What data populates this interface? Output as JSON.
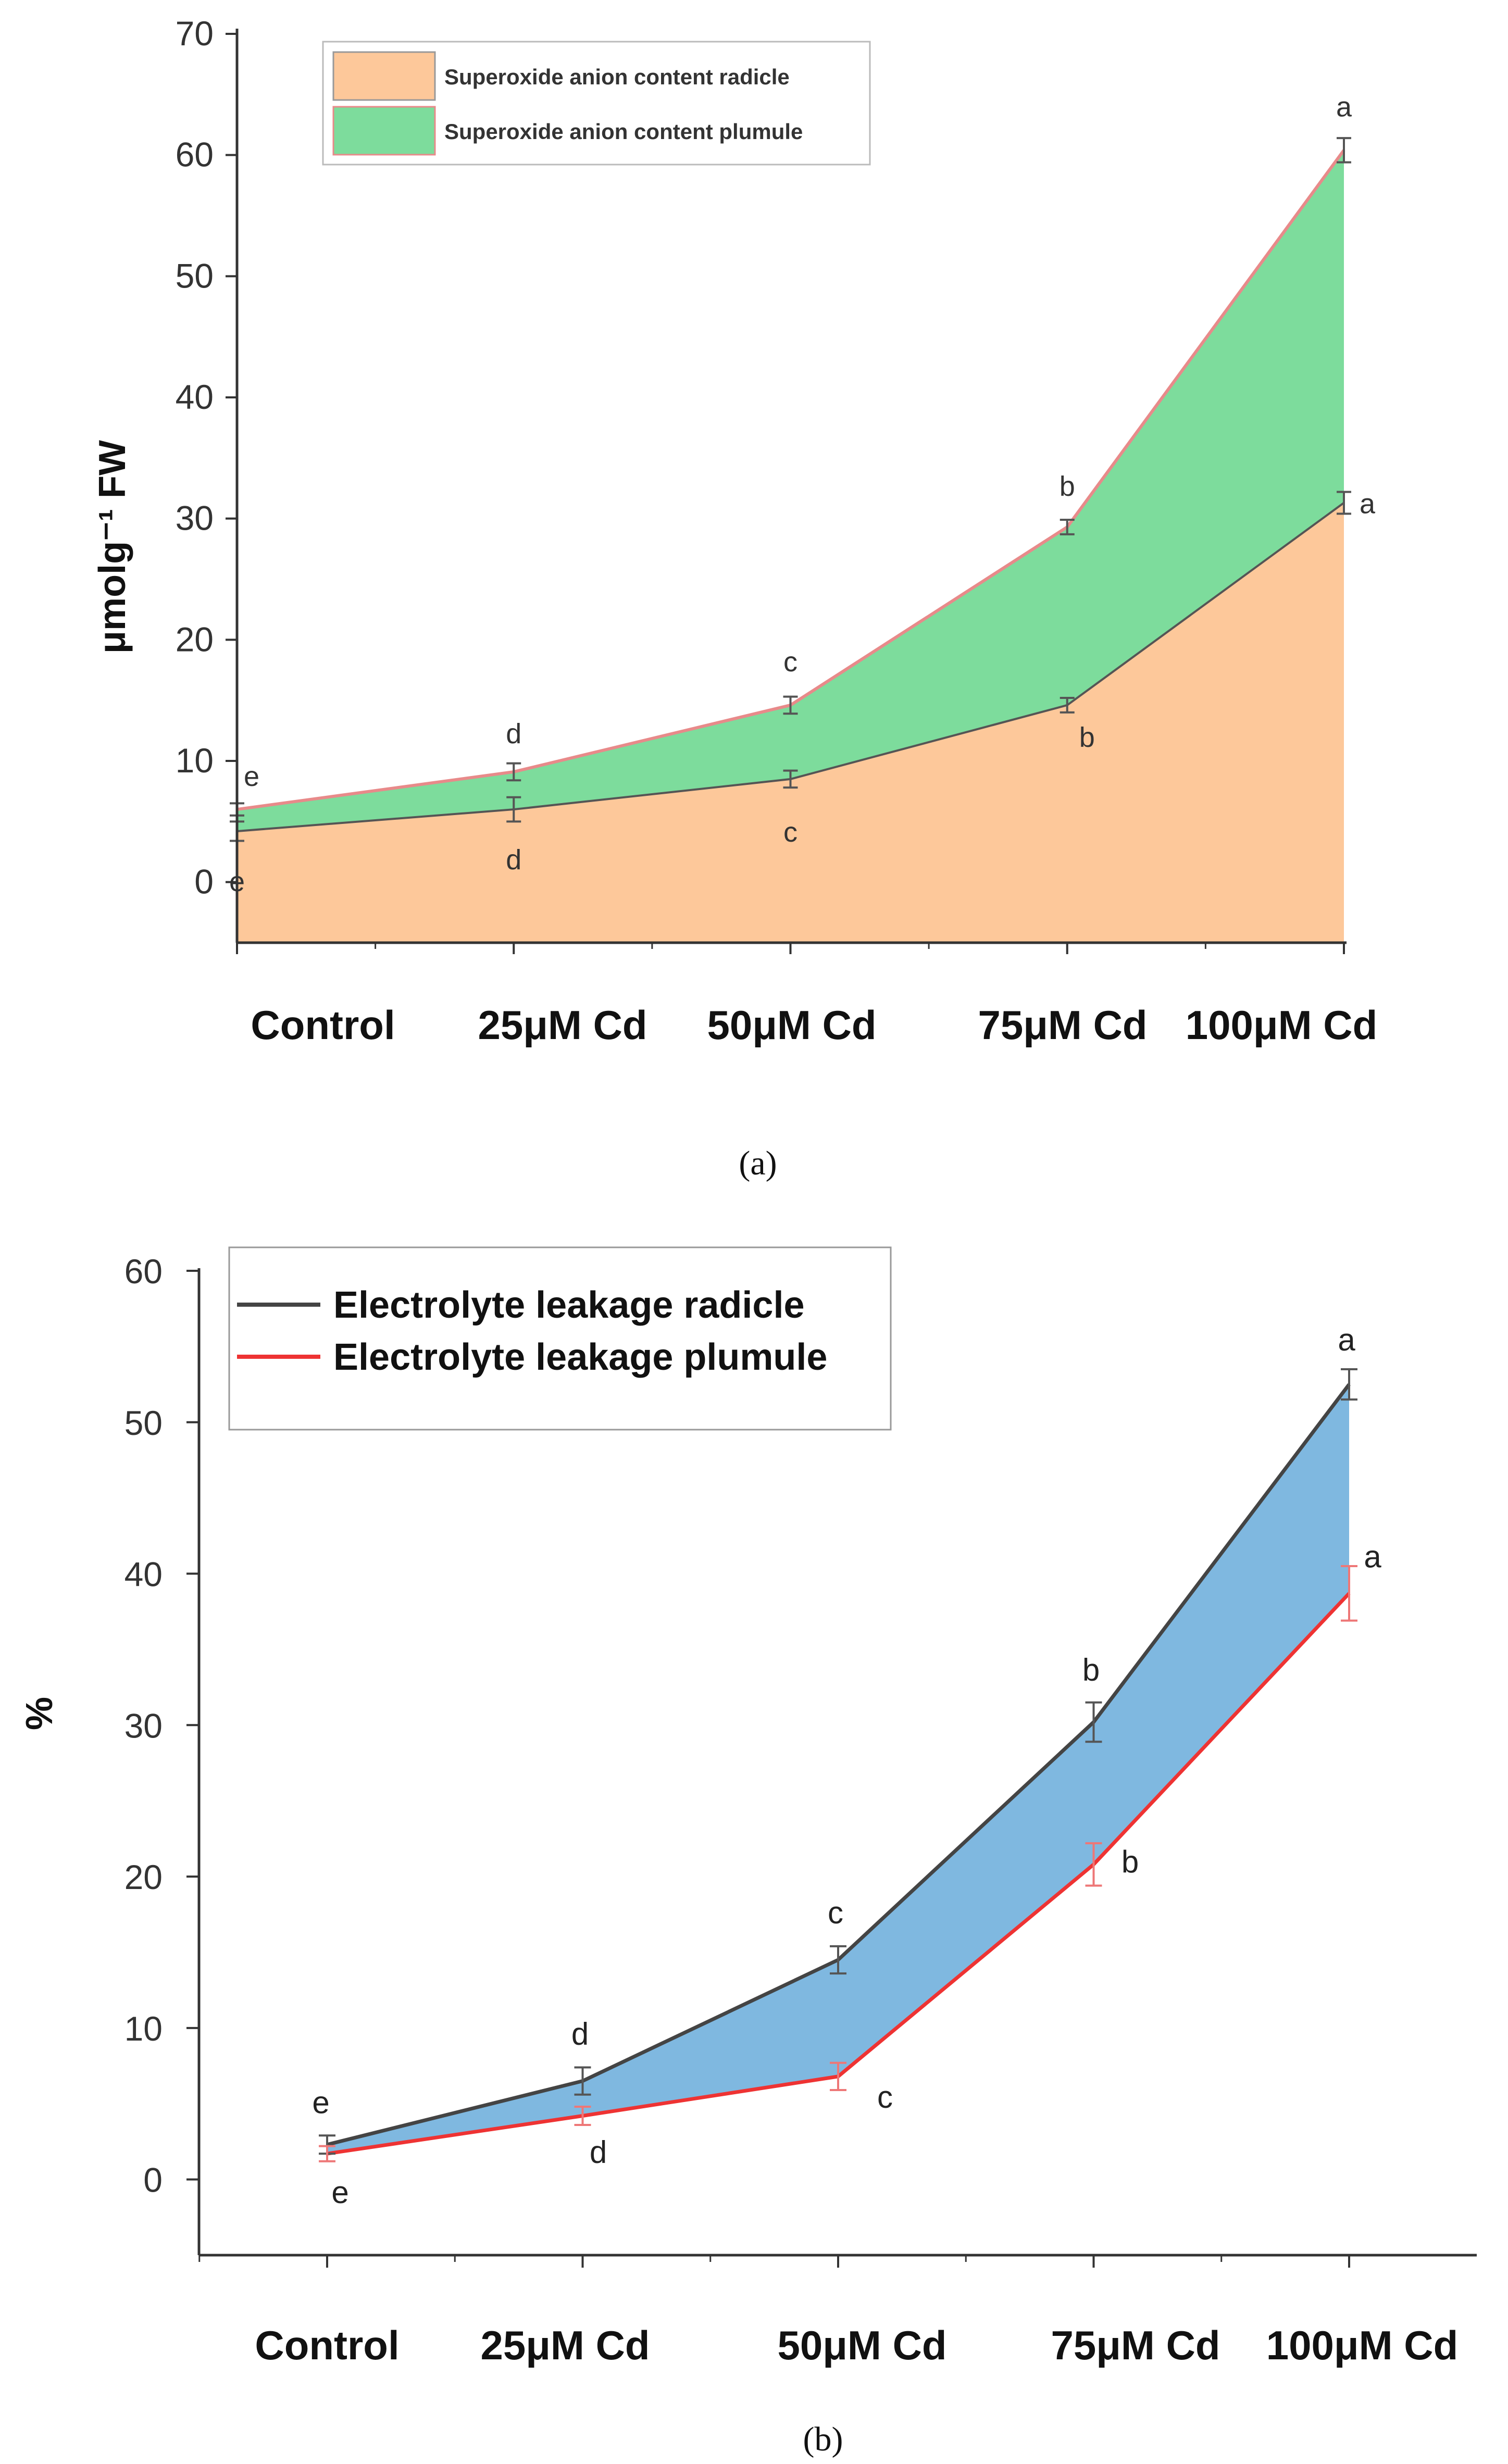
{
  "chart_data": [
    {
      "type": "area",
      "panel_label": "(a)",
      "ylabel": "μmolg⁻¹ FW",
      "xlabel": "",
      "categories": [
        "Control",
        "25μM Cd",
        "50μM Cd",
        "75μM Cd",
        "100μM Cd"
      ],
      "ylim": [
        -5,
        70
      ],
      "yticks": [
        0,
        10,
        20,
        30,
        40,
        50,
        60,
        70
      ],
      "legend_position": "top-left",
      "colors": {
        "radicle": "#fdc89a",
        "plumule": "#7ddc9c",
        "radicle_line": "#555555",
        "plumule_line": "#e88a8a",
        "error": "#555555"
      },
      "series": [
        {
          "name": "Superoxide anion content radicle",
          "values": [
            4.2,
            6.0,
            8.5,
            14.6,
            31.3
          ],
          "errors": [
            0.8,
            1.0,
            0.7,
            0.6,
            0.9
          ],
          "letters": [
            "e",
            "d",
            "c",
            "b",
            "a"
          ]
        },
        {
          "name": "Superoxide anion content plumule",
          "values": [
            6.0,
            9.1,
            14.6,
            29.3,
            60.4
          ],
          "errors": [
            0.5,
            0.7,
            0.7,
            0.6,
            1.0
          ],
          "letters": [
            "e",
            "d",
            "c",
            "b",
            "a"
          ]
        }
      ]
    },
    {
      "type": "line",
      "panel_label": "(b)",
      "ylabel": "%",
      "xlabel": "",
      "categories": [
        "Control",
        "25μM Cd",
        "50μM Cd",
        "75μM Cd",
        "100μM Cd"
      ],
      "ylim": [
        -5,
        60
      ],
      "yticks": [
        0,
        10,
        20,
        30,
        40,
        50,
        60
      ],
      "legend_position": "top-left",
      "colors": {
        "fill": "#7fb8e0",
        "radicle": "#444444",
        "plumule": "#ee3333",
        "radicle_err": "#555555",
        "plumule_err": "#ee7777"
      },
      "series": [
        {
          "name": "Electrolyte leakage radicle",
          "values": [
            2.3,
            6.5,
            14.5,
            30.2,
            52.5
          ],
          "errors": [
            0.6,
            0.9,
            0.9,
            1.3,
            1.0
          ],
          "letters": [
            "e",
            "d",
            "c",
            "b",
            "a"
          ]
        },
        {
          "name": "Electrolyte leakage plumule",
          "values": [
            1.7,
            4.2,
            6.8,
            20.8,
            38.7
          ],
          "errors": [
            0.5,
            0.6,
            0.9,
            1.4,
            1.8
          ],
          "letters": [
            "e",
            "d",
            "c",
            "b",
            "a"
          ]
        }
      ]
    }
  ]
}
